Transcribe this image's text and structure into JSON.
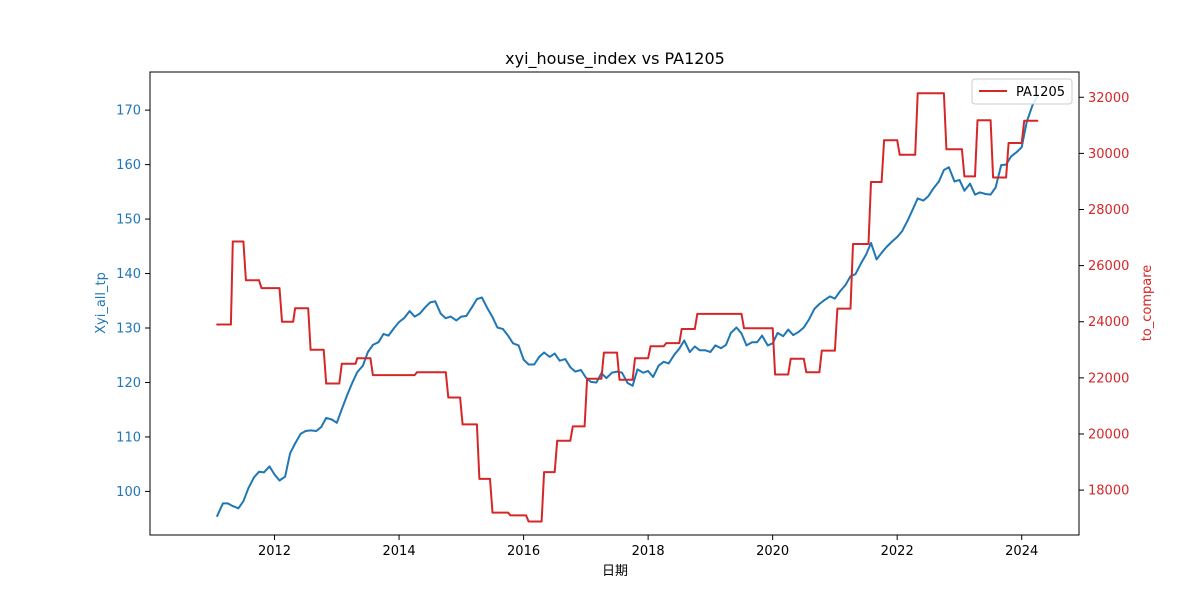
{
  "chart_data": {
    "type": "line",
    "title": "xyi_house_index vs PA1205",
    "xlabel": "日期",
    "ylabel_left": "Xyi_all_tp",
    "ylabel_right": "to_compare",
    "xlim": [
      2010.0,
      2024.92
    ],
    "ylim_left": [
      92.0,
      177.0
    ],
    "ylim_right": [
      16400,
      32900
    ],
    "x_ticks": [
      2012,
      2014,
      2016,
      2018,
      2020,
      2022,
      2024
    ],
    "x_tick_labels": [
      "2012",
      "2014",
      "2016",
      "2018",
      "2020",
      "2022",
      "2024"
    ],
    "y_ticks_left": [
      100,
      110,
      120,
      130,
      140,
      150,
      160,
      170
    ],
    "y_tick_labels_left": [
      "100",
      "110",
      "120",
      "130",
      "140",
      "150",
      "160",
      "170"
    ],
    "y_ticks_right": [
      18000,
      20000,
      22000,
      24000,
      26000,
      28000,
      30000,
      32000
    ],
    "y_tick_labels_right": [
      "18000",
      "20000",
      "22000",
      "24000",
      "26000",
      "28000",
      "30000",
      "32000"
    ],
    "legend": {
      "position": "top-right",
      "entries": [
        "PA1205"
      ]
    },
    "grid": false,
    "colors": {
      "left_series": "#1f77b4",
      "right_series": "#d62728"
    },
    "series": [
      {
        "axis": "left",
        "color": "#1f77b4",
        "x": [
          2011.08,
          2011.17,
          2011.25,
          2011.33,
          2011.42,
          2011.5,
          2011.58,
          2011.67,
          2011.75,
          2011.83,
          2011.92,
          2012.0,
          2012.08,
          2012.17,
          2012.25,
          2012.33,
          2012.42,
          2012.5,
          2012.58,
          2012.67,
          2012.75,
          2012.83,
          2012.92,
          2013.0,
          2013.08,
          2013.17,
          2013.25,
          2013.33,
          2013.42,
          2013.5,
          2013.58,
          2013.67,
          2013.75,
          2013.83,
          2013.92,
          2014.0,
          2014.08,
          2014.17,
          2014.25,
          2014.33,
          2014.42,
          2014.5,
          2014.58,
          2014.67,
          2014.75,
          2014.83,
          2014.92,
          2015.0,
          2015.08,
          2015.17,
          2015.25,
          2015.33,
          2015.42,
          2015.5,
          2015.58,
          2015.67,
          2015.75,
          2015.83,
          2015.92,
          2016.0,
          2016.08,
          2016.17,
          2016.25,
          2016.33,
          2016.42,
          2016.5,
          2016.58,
          2016.67,
          2016.75,
          2016.83,
          2016.92,
          2017.0,
          2017.08,
          2017.17,
          2017.25,
          2017.33,
          2017.42,
          2017.5,
          2017.58,
          2017.67,
          2017.75,
          2017.83,
          2017.92,
          2018.0,
          2018.08,
          2018.17,
          2018.25,
          2018.33,
          2018.42,
          2018.5,
          2018.58,
          2018.67,
          2018.75,
          2018.83,
          2018.92,
          2019.0,
          2019.08,
          2019.17,
          2019.25,
          2019.33,
          2019.42,
          2019.5,
          2019.58,
          2019.67,
          2019.75,
          2019.83,
          2019.92,
          2020.0,
          2020.08,
          2020.17,
          2020.25,
          2020.33,
          2020.42,
          2020.5,
          2020.58,
          2020.67,
          2020.75,
          2020.83,
          2020.92,
          2021.0,
          2021.08,
          2021.17,
          2021.25,
          2021.33,
          2021.42,
          2021.5,
          2021.58,
          2021.67,
          2021.75,
          2021.83,
          2021.92,
          2022.0,
          2022.08,
          2022.17,
          2022.25,
          2022.33,
          2022.42,
          2022.5,
          2022.58,
          2022.67,
          2022.75,
          2022.83,
          2022.92,
          2023.0,
          2023.08,
          2023.17,
          2023.25,
          2023.33,
          2023.42,
          2023.5,
          2023.58,
          2023.67,
          2023.75,
          2023.83,
          2023.92,
          2024.0,
          2024.08,
          2024.17,
          2024.25
        ],
        "y": [
          95.5,
          97.8,
          97.8,
          97.3,
          96.9,
          98.2,
          100.6,
          102.6,
          103.6,
          103.5,
          104.6,
          103.1,
          102.0,
          102.7,
          107.0,
          108.8,
          110.6,
          111.1,
          111.2,
          111.1,
          111.8,
          113.5,
          113.2,
          112.6,
          115.1,
          117.8,
          120.0,
          121.9,
          123.1,
          125.6,
          126.9,
          127.4,
          128.9,
          128.6,
          130.0,
          131.1,
          131.8,
          133.1,
          132.1,
          132.6,
          133.8,
          134.7,
          134.9,
          132.6,
          131.8,
          132.1,
          131.4,
          132.1,
          132.2,
          133.8,
          135.3,
          135.6,
          133.6,
          132.0,
          130.1,
          129.8,
          128.6,
          127.2,
          126.8,
          124.2,
          123.3,
          123.3,
          124.7,
          125.5,
          124.7,
          125.3,
          124.0,
          124.3,
          122.8,
          122.0,
          122.3,
          120.9,
          120.1,
          120.0,
          121.7,
          120.8,
          121.8,
          122.0,
          121.8,
          119.9,
          119.4,
          122.4,
          121.8,
          122.1,
          121.0,
          123.1,
          123.8,
          123.5,
          125.1,
          126.2,
          127.7,
          125.6,
          126.6,
          125.9,
          125.9,
          125.6,
          126.8,
          126.3,
          126.9,
          129.1,
          130.1,
          129.0,
          126.8,
          127.4,
          127.4,
          128.6,
          126.8,
          127.2,
          129.1,
          128.5,
          129.7,
          128.7,
          129.3,
          130.1,
          131.5,
          133.5,
          134.4,
          135.1,
          135.8,
          135.4,
          136.7,
          137.9,
          139.5,
          139.9,
          141.9,
          143.5,
          145.6,
          142.6,
          143.8,
          144.9,
          145.9,
          146.7,
          147.8,
          149.8,
          151.8,
          153.8,
          153.4,
          154.2,
          155.6,
          156.9,
          159.0,
          159.5,
          156.9,
          157.2,
          155.2,
          156.5,
          154.5,
          154.9,
          154.6,
          154.5,
          155.8,
          159.9,
          160.0,
          161.5,
          162.3,
          163.2,
          167.8,
          170.8,
          172.5
        ]
      },
      {
        "name": "PA1205",
        "axis": "right",
        "color": "#d62728",
        "x": [
          2011.08,
          2011.3,
          2011.33,
          2011.5,
          2011.54,
          2011.75,
          2011.79,
          2012.08,
          2012.12,
          2012.3,
          2012.33,
          2012.54,
          2012.58,
          2012.79,
          2012.83,
          2013.04,
          2013.08,
          2013.3,
          2013.33,
          2013.54,
          2013.58,
          2014.25,
          2014.29,
          2014.75,
          2014.79,
          2014.98,
          2015.02,
          2015.25,
          2015.29,
          2015.46,
          2015.5,
          2015.75,
          2015.79,
          2016.04,
          2016.08,
          2016.29,
          2016.33,
          2016.5,
          2016.54,
          2016.75,
          2016.79,
          2016.98,
          2017.02,
          2017.25,
          2017.29,
          2017.5,
          2017.54,
          2017.75,
          2017.79,
          2018.0,
          2018.04,
          2018.25,
          2018.29,
          2018.5,
          2018.54,
          2018.75,
          2018.79,
          2019.5,
          2019.54,
          2020.0,
          2020.04,
          2020.25,
          2020.29,
          2020.5,
          2020.54,
          2020.75,
          2020.79,
          2021.0,
          2021.04,
          2021.25,
          2021.29,
          2021.54,
          2021.58,
          2021.75,
          2021.79,
          2022.0,
          2022.04,
          2022.29,
          2022.33,
          2022.75,
          2022.79,
          2023.04,
          2023.08,
          2023.25,
          2023.29,
          2023.5,
          2023.54,
          2023.75,
          2023.79,
          2024.0,
          2024.04,
          2024.25
        ],
        "y": [
          23900,
          23900,
          26860,
          26860,
          25480,
          25480,
          25200,
          25200,
          24000,
          24000,
          24480,
          24480,
          23000,
          23000,
          21800,
          21800,
          22500,
          22500,
          22700,
          22700,
          22100,
          22100,
          22200,
          22200,
          21300,
          21300,
          20340,
          20340,
          18400,
          18400,
          17200,
          17200,
          17100,
          17100,
          16880,
          16880,
          18640,
          18640,
          19760,
          19760,
          20270,
          20270,
          21970,
          21970,
          22900,
          22900,
          21930,
          21930,
          22700,
          22700,
          23130,
          23130,
          23240,
          23240,
          23740,
          23740,
          24280,
          24280,
          23770,
          23770,
          22120,
          22120,
          22680,
          22680,
          22200,
          22200,
          22970,
          22970,
          24470,
          24470,
          26770,
          26770,
          28980,
          28980,
          30470,
          30470,
          29950,
          29950,
          32140,
          32140,
          30150,
          30150,
          29180,
          29180,
          31180,
          31180,
          29140,
          29140,
          30370,
          30370,
          31160,
          31160
        ]
      }
    ]
  }
}
